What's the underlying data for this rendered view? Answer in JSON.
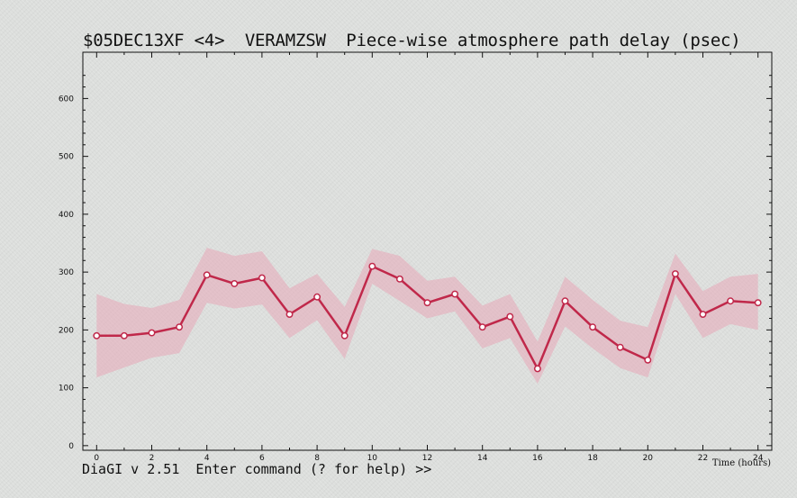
{
  "window": {
    "title": "$05DEC13XF <4>  VERAMZSW  Piece-wise atmosphere path delay (psec)",
    "prompt": "DiaGI v 2.51  Enter command (? for help) >>"
  },
  "colors": {
    "line": "#c0284a",
    "band": "#e8a8b8",
    "background": "#dcdedc",
    "axis": "#111111"
  },
  "chart_data": {
    "type": "line",
    "title": "$05DEC13XF <4>  VERAMZSW  Piece-wise atmosphere path delay (psec)",
    "xlabel": "Time (hours)",
    "ylabel": "",
    "xlim": [
      -0.5,
      24.5
    ],
    "ylim": [
      -8,
      680
    ],
    "xticks": [
      0,
      2,
      4,
      6,
      8,
      10,
      12,
      14,
      16,
      18,
      20,
      22,
      24
    ],
    "yticks": [
      0,
      100,
      200,
      300,
      400,
      500,
      600
    ],
    "grid": false,
    "series": [
      {
        "x": [
          0,
          1,
          2,
          3,
          4,
          5,
          6,
          7,
          8,
          9,
          10,
          11,
          12,
          13,
          14,
          15,
          16,
          17,
          18,
          19,
          20,
          21,
          22,
          23,
          24
        ],
        "values": [
          190,
          190,
          195,
          205,
          295,
          280,
          290,
          227,
          257,
          190,
          310,
          288,
          247,
          262,
          205,
          223,
          133,
          250,
          205,
          170,
          148,
          297,
          227,
          250,
          247
        ],
        "upper": [
          262,
          245,
          238,
          252,
          342,
          328,
          336,
          272,
          297,
          240,
          340,
          328,
          285,
          292,
          242,
          262,
          180,
          292,
          252,
          216,
          205,
          332,
          267,
          292,
          297
        ],
        "lower": [
          118,
          135,
          152,
          160,
          247,
          237,
          244,
          186,
          217,
          150,
          280,
          250,
          220,
          232,
          168,
          186,
          107,
          206,
          168,
          134,
          118,
          262,
          186,
          210,
          200
        ]
      }
    ]
  }
}
